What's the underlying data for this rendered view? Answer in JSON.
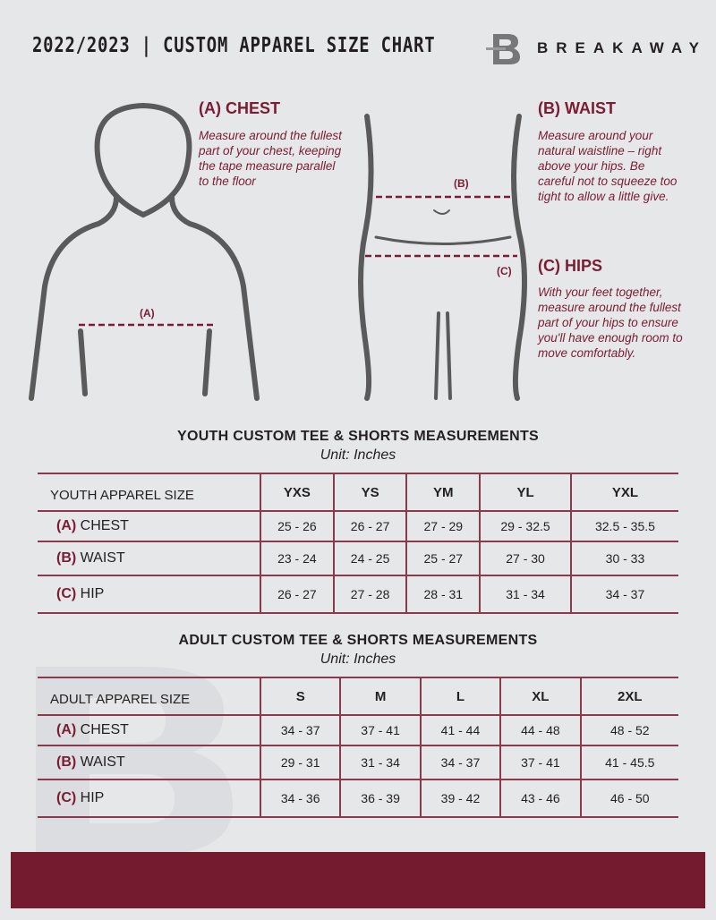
{
  "header": {
    "title": "2022/2023 | CUSTOM APPAREL SIZE CHART",
    "brand": "BREAKAWAY",
    "logo_letter": "B"
  },
  "guide": {
    "chest": {
      "heading": "(A) CHEST",
      "text": "Measure around the fullest part of your chest, keeping the tape measure parallel to the floor",
      "marker": "(A)"
    },
    "waist": {
      "heading": "(B) WAIST",
      "text": "Measure around your natural waistline – right above your hips. Be careful not to squeeze too tight to allow a little give.",
      "marker": "(B)"
    },
    "hips": {
      "heading": "(C) HIPS",
      "text": "With your feet together, measure around the fullest part of your hips to ensure you'll have enough room to move comfortably.",
      "marker": "(C)"
    }
  },
  "youth": {
    "title": "YOUTH CUSTOM TEE & SHORTS MEASUREMENTS",
    "unit": "Unit: Inches",
    "header": [
      "YOUTH APPAREL SIZE",
      "YXS",
      "YS",
      "YM",
      "YL",
      "YXL"
    ],
    "rows": [
      {
        "code": "(A)",
        "name": "CHEST",
        "values": [
          "25 - 26",
          "26 - 27",
          "27 - 29",
          "29 - 32.5",
          "32.5 - 35.5"
        ]
      },
      {
        "code": "(B)",
        "name": "WAIST",
        "values": [
          "23 - 24",
          "24 - 25",
          "25 - 27",
          "27 - 30",
          "30 - 33"
        ]
      },
      {
        "code": "(C)",
        "name": "HIP",
        "values": [
          "26 - 27",
          "27 - 28",
          "28 - 31",
          "31 - 34",
          "34 - 37"
        ]
      }
    ]
  },
  "adult": {
    "title": "ADULT CUSTOM TEE & SHORTS MEASUREMENTS",
    "unit": "Unit: Inches",
    "header": [
      "ADULT APPAREL SIZE",
      "S",
      "M",
      "L",
      "XL",
      "2XL"
    ],
    "rows": [
      {
        "code": "(A)",
        "name": "CHEST",
        "values": [
          "34 - 37",
          "37 - 41",
          "41 - 44",
          "44 - 48",
          "48 - 52"
        ]
      },
      {
        "code": "(B)",
        "name": "WAIST",
        "values": [
          "29 - 31",
          "31 - 34",
          "34 - 37",
          "37 - 41",
          "41 - 45.5"
        ]
      },
      {
        "code": "(C)",
        "name": "HIP",
        "values": [
          "34 - 36",
          "36 - 39",
          "39 - 42",
          "43 - 46",
          "46 - 50"
        ]
      }
    ]
  },
  "colors": {
    "accent": "#741b30",
    "background": "#e6e7e9"
  }
}
